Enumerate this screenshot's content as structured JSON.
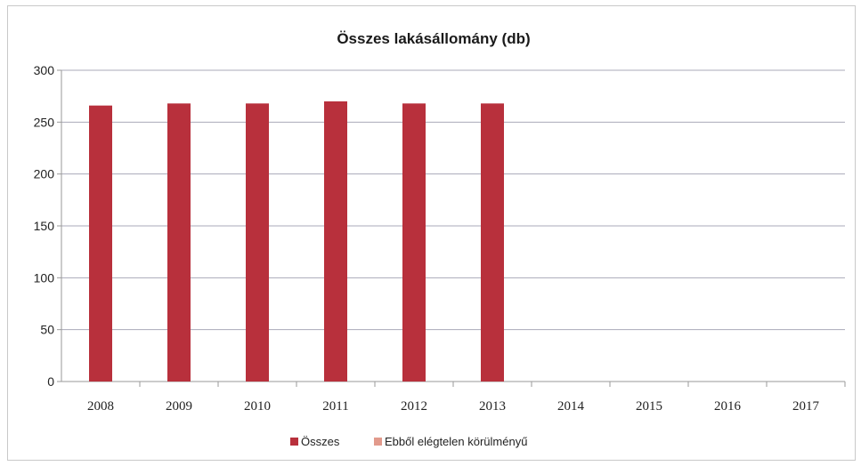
{
  "chart_data": {
    "type": "bar",
    "title": "Összes lakásállomány (db)",
    "categories": [
      "2008",
      "2009",
      "2010",
      "2011",
      "2012",
      "2013",
      "2014",
      "2015",
      "2016",
      "2017"
    ],
    "series": [
      {
        "name": "Összes",
        "color": "#b8303c",
        "values": [
          266,
          268,
          268,
          270,
          268,
          268,
          null,
          null,
          null,
          null
        ]
      },
      {
        "name": "Ebből elégtelen körülményű",
        "color": "#e29a8c",
        "values": [
          0,
          0,
          0,
          0,
          0,
          0,
          null,
          null,
          null,
          null
        ]
      }
    ],
    "yticks": [
      0,
      50,
      100,
      150,
      200,
      250,
      300
    ],
    "ylim": [
      0,
      300
    ],
    "grid": true,
    "legend_position": "bottom",
    "xlabel": "",
    "ylabel": ""
  }
}
